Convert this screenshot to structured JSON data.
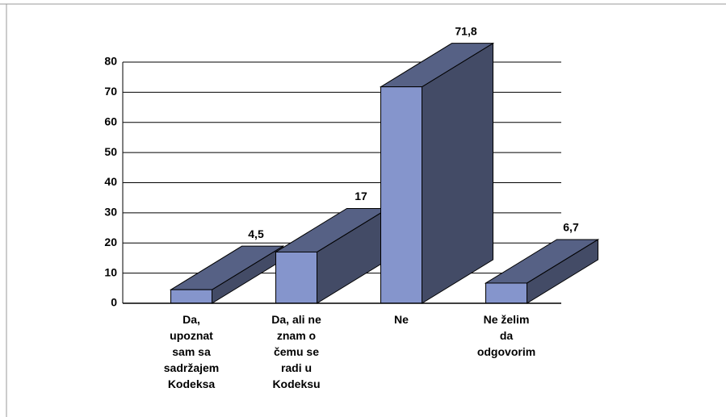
{
  "chart_data": {
    "type": "bar3d",
    "categories": [
      "Da,\nupoznat\nsam sa\nsadržajem\nKodeksa",
      "Da, ali ne\nznam o\nčemu se\nradi u\nKodeksu",
      "Ne",
      "Ne želim\nda\nodgovorim"
    ],
    "values": [
      4.5,
      17,
      71.8,
      6.7
    ],
    "value_labels": [
      "4,5",
      "17",
      "71,8",
      "6,7"
    ],
    "color": "#8595cc",
    "ylim": [
      0,
      80
    ],
    "yticks": [
      0,
      10,
      20,
      30,
      40,
      50,
      60,
      70,
      80
    ],
    "grid": true
  }
}
